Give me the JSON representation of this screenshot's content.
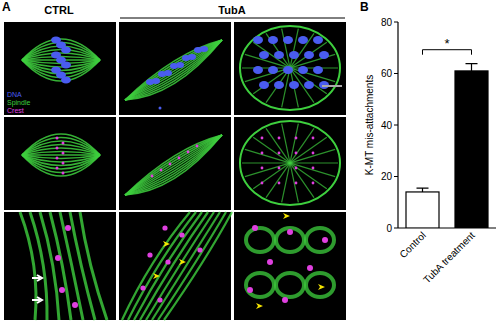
{
  "panel_a": {
    "label": "A",
    "columns": [
      "CTRL",
      "TubA"
    ],
    "legend": [
      {
        "name": "DNA",
        "color": "#4a5cf0"
      },
      {
        "name": "Spindle",
        "color": "#3ecf3e"
      },
      {
        "name": "Crest",
        "color": "#e040e0"
      }
    ]
  },
  "chart_data": {
    "type": "bar",
    "panel_label": "B",
    "categories": [
      "Control",
      "TubA treatment"
    ],
    "values": [
      14,
      61
    ],
    "errors": [
      1.5,
      2.8
    ],
    "colors": [
      "#ffffff",
      "#000000"
    ],
    "ylabel": "K-MT mis-attachments",
    "ylim": [
      0,
      80
    ],
    "yticks": [
      0,
      20,
      40,
      60,
      80
    ],
    "annotation": "*",
    "grid": false
  }
}
